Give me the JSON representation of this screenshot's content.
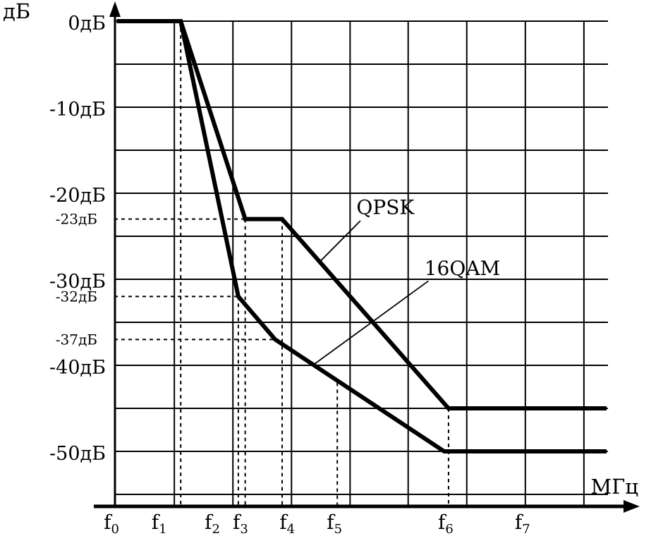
{
  "chart_data": {
    "type": "line",
    "title": "",
    "x_axis_label": "МГц",
    "y_axis_label": "дБ",
    "ylim": [
      0,
      -55
    ],
    "grid": {
      "on": true,
      "h_db_step": 5,
      "h_db_min": -55,
      "v_fracs": [
        0.122,
        0.241,
        0.36,
        0.479,
        0.597,
        0.716,
        0.835,
        0.954
      ]
    },
    "y_ticks_major": [
      {
        "label": "0дБ",
        "db": 0
      },
      {
        "label": "-10дБ",
        "db": -10
      },
      {
        "label": "-20дБ",
        "db": -20
      },
      {
        "label": "-30дБ",
        "db": -30
      },
      {
        "label": "-40дБ",
        "db": -40
      },
      {
        "label": "-50дБ",
        "db": -50
      }
    ],
    "y_ticks_minor": [
      {
        "label": "-23дБ",
        "db": -23
      },
      {
        "label": "-32дБ",
        "db": -32
      },
      {
        "label": "-37дБ",
        "db": -37
      }
    ],
    "x_ticks": [
      {
        "base": "f",
        "sub": "0",
        "pos": 0.0
      },
      {
        "base": "f",
        "sub": "1",
        "pos": 0.097
      },
      {
        "base": "f",
        "sub": "2",
        "pos": 0.205
      },
      {
        "base": "f",
        "sub": "3",
        "pos": 0.262
      },
      {
        "base": "f",
        "sub": "4",
        "pos": 0.357
      },
      {
        "base": "f",
        "sub": "5",
        "pos": 0.453
      },
      {
        "base": "f",
        "sub": "6",
        "pos": 0.679
      },
      {
        "base": "f",
        "sub": "7",
        "pos": 0.835
      }
    ],
    "series": [
      {
        "name": "QPSK",
        "points": [
          {
            "pos": 0.005,
            "db": 0
          },
          {
            "pos": 0.135,
            "db": 0
          },
          {
            "pos": 0.266,
            "db": -23
          },
          {
            "pos": 0.341,
            "db": -23
          },
          {
            "pos": 0.679,
            "db": -45
          },
          {
            "pos": 1.0,
            "db": -45
          }
        ]
      },
      {
        "name": "16QAM",
        "points": [
          {
            "pos": 0.005,
            "db": 0
          },
          {
            "pos": 0.135,
            "db": 0
          },
          {
            "pos": 0.252,
            "db": -32
          },
          {
            "pos": 0.327,
            "db": -37
          },
          {
            "pos": 0.67,
            "db": -50
          },
          {
            "pos": 1.0,
            "db": -50
          }
        ]
      }
    ],
    "annotations": [
      {
        "label": "QPSK",
        "text": {
          "pos": 0.492,
          "db": -22.4
        },
        "leader": {
          "from": {
            "pos": 0.5,
            "db": -23.2
          },
          "to": {
            "pos": 0.415,
            "db": -28.1
          }
        }
      },
      {
        "label": "16QAM",
        "text": {
          "pos": 0.63,
          "db": -29.5
        },
        "leader": {
          "from": {
            "pos": 0.638,
            "db": -30.2
          },
          "to": {
            "pos": 0.403,
            "db": -40.0
          }
        }
      }
    ],
    "guides": {
      "v_dashed": [
        {
          "pos": 0.135,
          "top_db": 0
        },
        {
          "pos": 0.252,
          "top_db": -32
        },
        {
          "pos": 0.266,
          "top_db": -23
        },
        {
          "pos": 0.341,
          "top_db": -23
        },
        {
          "pos": 0.453,
          "top_db": -42
        },
        {
          "pos": 0.679,
          "top_db": -45
        }
      ],
      "h_dashed": [
        {
          "db": -23,
          "to_pos": 0.341
        },
        {
          "db": -32,
          "to_pos": 0.252
        },
        {
          "db": -37,
          "to_pos": 0.327
        }
      ]
    },
    "colors": {
      "ink": "#000000",
      "background": "#ffffff"
    }
  }
}
